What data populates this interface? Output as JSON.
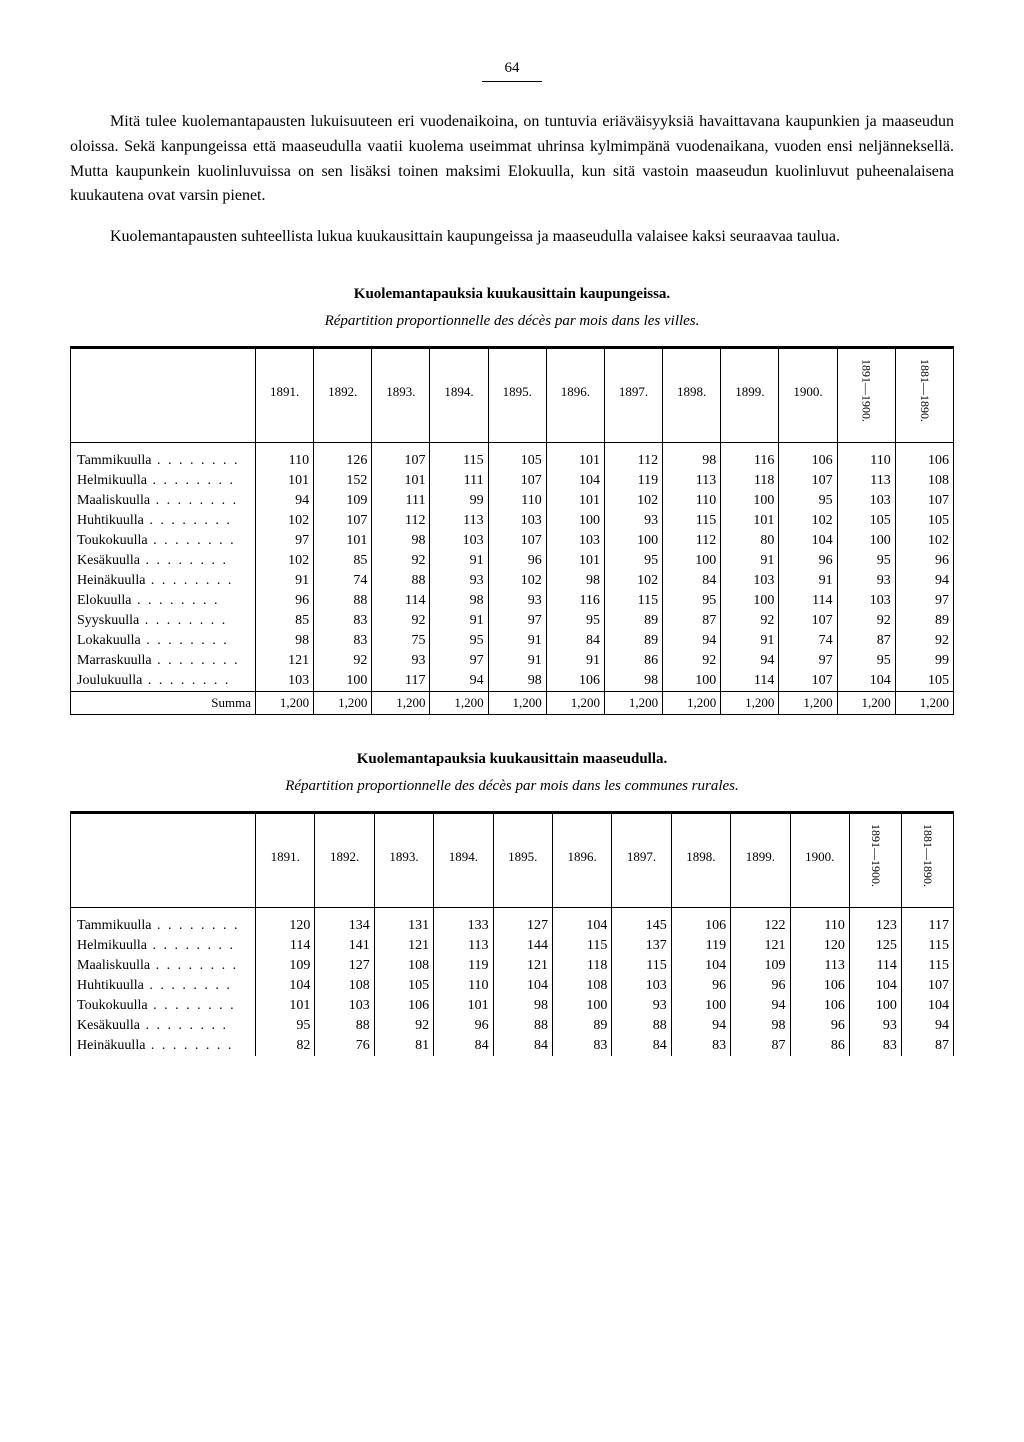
{
  "page_number": "64",
  "para1": "Mitä tulee kuolemantapausten lukuisuuteen eri vuodenaikoina, on tuntuvia eriäväisyyksiä havaittavana kaupunkien ja maaseudun oloissa. Sekä kanpungeissa että maaseudulla vaatii kuolema useimmat uhrinsa kylmimpänä vuodenaikana, vuoden ensi neljänneksellä. Mutta kaupunkein kuolinluvuissa on sen lisäksi toinen maksimi Elokuulla, kun sitä vastoin maaseudun kuolinluvut puheenalaisena kuukautena ovat varsin pienet.",
  "para2": "Kuolemantapausten suhteellista lukua kuukausittain kaupungeissa ja maaseudulla valaisee kaksi seuraavaa taulua.",
  "table1": {
    "heading": "Kuolemantapauksia kuukausittain kaupungeissa.",
    "subtitle": "Répartition proportionnelle des décès par mois dans les villes.",
    "years": [
      "1891.",
      "1892.",
      "1893.",
      "1894.",
      "1895.",
      "1896.",
      "1897.",
      "1898.",
      "1899.",
      "1900."
    ],
    "range1": "1891—1900.",
    "range2": "1881—1890.",
    "months": [
      "Tammikuulla",
      "Helmikuulla",
      "Maaliskuulla",
      "Huhtikuulla",
      "Toukokuulla",
      "Kesäkuulla",
      "Heinäkuulla",
      "Elokuulla",
      "Syyskuulla",
      "Lokakuulla",
      "Marraskuulla",
      "Joulukuulla"
    ],
    "data": [
      [
        110,
        126,
        107,
        115,
        105,
        101,
        112,
        98,
        116,
        106,
        110,
        106
      ],
      [
        101,
        152,
        101,
        111,
        107,
        104,
        119,
        113,
        118,
        107,
        113,
        108
      ],
      [
        94,
        109,
        111,
        99,
        110,
        101,
        102,
        110,
        100,
        95,
        103,
        107
      ],
      [
        102,
        107,
        112,
        113,
        103,
        100,
        93,
        115,
        101,
        102,
        105,
        105
      ],
      [
        97,
        101,
        98,
        103,
        107,
        103,
        100,
        112,
        80,
        104,
        100,
        102
      ],
      [
        102,
        85,
        92,
        91,
        96,
        101,
        95,
        100,
        91,
        96,
        95,
        96
      ],
      [
        91,
        74,
        88,
        93,
        102,
        98,
        102,
        84,
        103,
        91,
        93,
        94
      ],
      [
        96,
        88,
        114,
        98,
        93,
        116,
        115,
        95,
        100,
        114,
        103,
        97
      ],
      [
        85,
        83,
        92,
        91,
        97,
        95,
        89,
        87,
        92,
        107,
        92,
        89
      ],
      [
        98,
        83,
        75,
        95,
        91,
        84,
        89,
        94,
        91,
        74,
        87,
        92
      ],
      [
        121,
        92,
        93,
        97,
        91,
        91,
        86,
        92,
        94,
        97,
        95,
        99
      ],
      [
        103,
        100,
        117,
        94,
        98,
        106,
        98,
        100,
        114,
        107,
        104,
        105
      ]
    ],
    "summa_label": "Summa",
    "summa": [
      "1,200",
      "1,200",
      "1,200",
      "1,200",
      "1,200",
      "1,200",
      "1,200",
      "1,200",
      "1,200",
      "1,200",
      "1,200",
      "1,200"
    ]
  },
  "table2": {
    "heading": "Kuolemantapauksia kuukausittain maaseudulla.",
    "subtitle": "Répartition proportionnelle des décès par mois dans les communes rurales.",
    "years": [
      "1891.",
      "1892.",
      "1893.",
      "1894.",
      "1895.",
      "1896.",
      "1897.",
      "1898.",
      "1899.",
      "1900."
    ],
    "range1": "1891—1900.",
    "range2": "1881—1890.",
    "months": [
      "Tammikuulla",
      "Helmikuulla",
      "Maaliskuulla",
      "Huhtikuulla",
      "Toukokuulla",
      "Kesäkuulla",
      "Heinäkuulla"
    ],
    "data": [
      [
        120,
        134,
        131,
        133,
        127,
        104,
        145,
        106,
        122,
        110,
        123,
        117
      ],
      [
        114,
        141,
        121,
        113,
        144,
        115,
        137,
        119,
        121,
        120,
        125,
        115
      ],
      [
        109,
        127,
        108,
        119,
        121,
        118,
        115,
        104,
        109,
        113,
        114,
        115
      ],
      [
        104,
        108,
        105,
        110,
        104,
        108,
        103,
        96,
        96,
        106,
        104,
        107
      ],
      [
        101,
        103,
        106,
        101,
        98,
        100,
        93,
        100,
        94,
        106,
        100,
        104
      ],
      [
        95,
        88,
        92,
        96,
        88,
        89,
        88,
        94,
        98,
        96,
        93,
        94
      ],
      [
        82,
        76,
        81,
        84,
        84,
        83,
        84,
        83,
        87,
        86,
        83,
        87
      ]
    ]
  }
}
